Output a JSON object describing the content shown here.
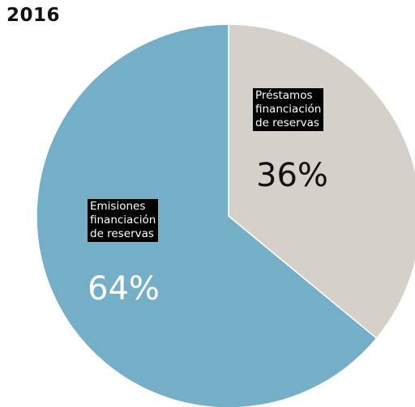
{
  "title": "2016",
  "chart_data": {
    "type": "pie",
    "title": "2016",
    "slices": [
      {
        "label_lines": [
          "Préstamos",
          "financiación",
          "de reservas"
        ],
        "value": 36,
        "value_label": "36%",
        "color": "#d5d0c9"
      },
      {
        "label_lines": [
          "Emisiones",
          "financiación",
          "de reservas"
        ],
        "value": 64,
        "value_label": "64%",
        "color": "#75afc7"
      }
    ]
  }
}
